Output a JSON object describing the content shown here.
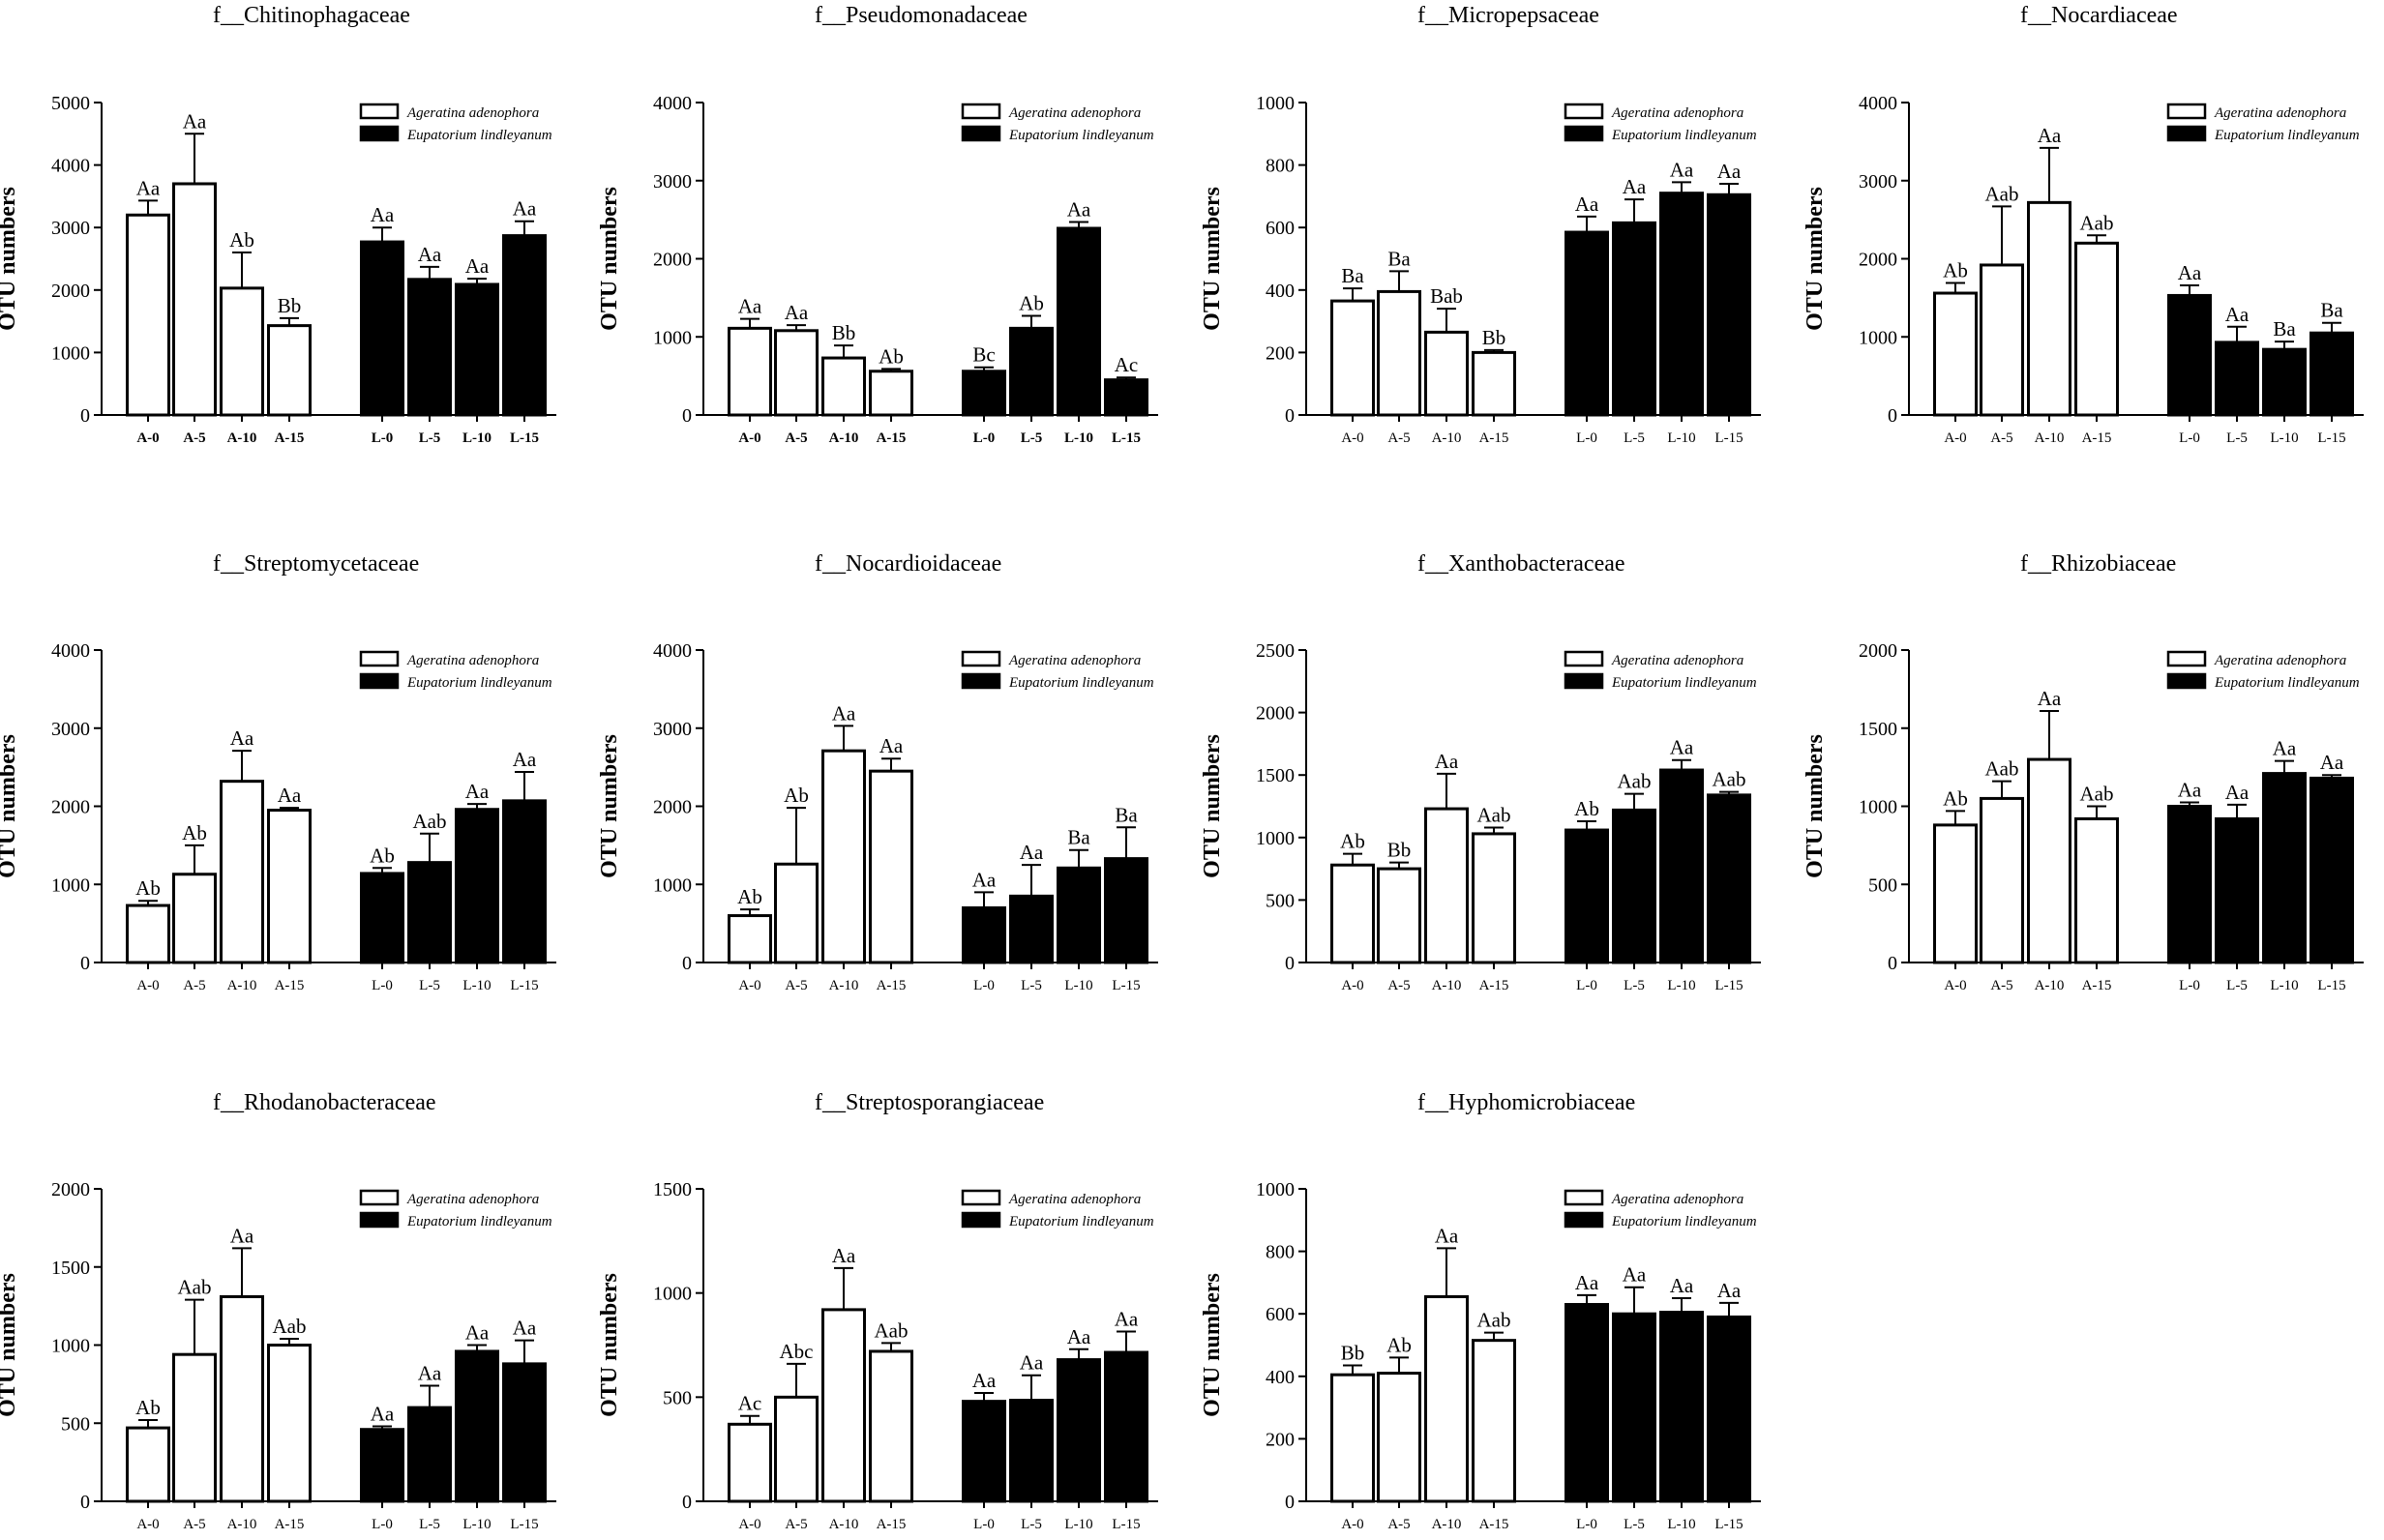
{
  "figure": {
    "ylabel": "OTU numbers",
    "legend": [
      "Ageratina adenophora",
      "Eupatorium lindleyanum"
    ],
    "colors": {
      "series_a": "#ffffff",
      "series_l": "#000000",
      "stroke": "#000000"
    }
  },
  "chart_data": [
    {
      "type": "bar",
      "title": "f__Chitinophagaceae",
      "ylabel": "OTU numbers",
      "ylim": [
        0,
        5000
      ],
      "yticks": [
        0,
        1000,
        2000,
        3000,
        4000,
        5000
      ],
      "bold_xticks": true,
      "legend": [
        "Ageratina adenophora",
        "Eupatorium lindleyanum"
      ],
      "series": [
        {
          "name": "Ageratina adenophora",
          "categories": [
            "A-0",
            "A-5",
            "A-10",
            "A-15"
          ],
          "values": [
            3200,
            3700,
            2030,
            1430
          ],
          "errors": [
            230,
            800,
            570,
            120
          ],
          "labels": [
            "Aa",
            "Aa",
            "Ab",
            "Bb"
          ]
        },
        {
          "name": "Eupatorium lindleyanum",
          "categories": [
            "L-0",
            "L-5",
            "L-10",
            "L-15"
          ],
          "values": [
            2770,
            2170,
            2090,
            2870
          ],
          "errors": [
            230,
            200,
            90,
            230
          ],
          "labels": [
            "Aa",
            "Aa",
            "Aa",
            "Aa"
          ]
        }
      ]
    },
    {
      "type": "bar",
      "title": "f__Pseudomonadaceae",
      "ylabel": "OTU numbers",
      "ylim": [
        0,
        4000
      ],
      "yticks": [
        0,
        1000,
        2000,
        3000,
        4000
      ],
      "bold_xticks": true,
      "legend": [
        "Ageratina adenophora",
        "Eupatorium lindleyanum"
      ],
      "series": [
        {
          "name": "Ageratina adenophora",
          "categories": [
            "A-0",
            "A-5",
            "A-10",
            "A-15"
          ],
          "values": [
            1110,
            1080,
            730,
            560
          ],
          "errors": [
            120,
            70,
            160,
            30
          ],
          "labels": [
            "Aa",
            "Aa",
            "Bb",
            "Ab"
          ]
        },
        {
          "name": "Eupatorium lindleyanum",
          "categories": [
            "L-0",
            "L-5",
            "L-10",
            "L-15"
          ],
          "values": [
            560,
            1110,
            2390,
            450
          ],
          "errors": [
            50,
            160,
            80,
            30
          ],
          "labels": [
            "Bc",
            "Ab",
            "Aa",
            "Ac"
          ]
        }
      ]
    },
    {
      "type": "bar",
      "title": "f__Micropepsaceae",
      "ylabel": "OTU numbers",
      "ylim": [
        0,
        1000
      ],
      "yticks": [
        0,
        200,
        400,
        600,
        800,
        1000
      ],
      "bold_xticks": false,
      "legend": [
        "Ageratina adenophora",
        "Eupatorium lindleyanum"
      ],
      "series": [
        {
          "name": "Ageratina adenophora",
          "categories": [
            "A-0",
            "A-5",
            "A-10",
            "A-15"
          ],
          "values": [
            365,
            395,
            265,
            200
          ],
          "errors": [
            40,
            65,
            75,
            8
          ],
          "labels": [
            "Ba",
            "Ba",
            "Bab",
            "Bb"
          ]
        },
        {
          "name": "Eupatorium lindleyanum",
          "categories": [
            "L-0",
            "L-5",
            "L-10",
            "L-15"
          ],
          "values": [
            585,
            615,
            710,
            705
          ],
          "errors": [
            50,
            75,
            35,
            35
          ],
          "labels": [
            "Aa",
            "Aa",
            "Aa",
            "Aa"
          ]
        }
      ]
    },
    {
      "type": "bar",
      "title": "f__Nocardiaceae",
      "ylabel": "OTU numbers",
      "ylim": [
        0,
        4000
      ],
      "yticks": [
        0,
        1000,
        2000,
        3000,
        4000
      ],
      "bold_xticks": false,
      "legend": [
        "Ageratina adenophora",
        "Eupatorium lindleyanum"
      ],
      "series": [
        {
          "name": "Ageratina adenophora",
          "categories": [
            "A-0",
            "A-5",
            "A-10",
            "A-15"
          ],
          "values": [
            1560,
            1920,
            2720,
            2200
          ],
          "errors": [
            130,
            750,
            700,
            100
          ],
          "labels": [
            "Ab",
            "Aab",
            "Aa",
            "Aab"
          ]
        },
        {
          "name": "Eupatorium lindleyanum",
          "categories": [
            "L-0",
            "L-5",
            "L-10",
            "L-15"
          ],
          "values": [
            1530,
            930,
            840,
            1050
          ],
          "errors": [
            130,
            200,
            100,
            130
          ],
          "labels": [
            "Aa",
            "Aa",
            "Ba",
            "Ba"
          ]
        }
      ]
    },
    {
      "type": "bar",
      "title": "f__Streptomycetaceae",
      "ylabel": "OTU numbers",
      "ylim": [
        0,
        4000
      ],
      "yticks": [
        0,
        1000,
        2000,
        3000,
        4000
      ],
      "bold_xticks": false,
      "legend": [
        "Ageratina adenophora",
        "Eupatorium lindleyanum"
      ],
      "series": [
        {
          "name": "Ageratina adenophora",
          "categories": [
            "A-0",
            "A-5",
            "A-10",
            "A-15"
          ],
          "values": [
            730,
            1130,
            2320,
            1950
          ],
          "errors": [
            60,
            370,
            390,
            30
          ],
          "labels": [
            "Ab",
            "Ab",
            "Aa",
            "Aa"
          ]
        },
        {
          "name": "Eupatorium lindleyanum",
          "categories": [
            "L-0",
            "L-5",
            "L-10",
            "L-15"
          ],
          "values": [
            1140,
            1280,
            1960,
            2070
          ],
          "errors": [
            70,
            370,
            70,
            370
          ],
          "labels": [
            "Ab",
            "Aab",
            "Aa",
            "Aa"
          ]
        }
      ]
    },
    {
      "type": "bar",
      "title": "f__Nocardioidaceae",
      "ylabel": "OTU numbers",
      "ylim": [
        0,
        4000
      ],
      "yticks": [
        0,
        1000,
        2000,
        3000,
        4000
      ],
      "bold_xticks": false,
      "legend": [
        "Ageratina adenophora",
        "Eupatorium lindleyanum"
      ],
      "series": [
        {
          "name": "Ageratina adenophora",
          "categories": [
            "A-0",
            "A-5",
            "A-10",
            "A-15"
          ],
          "values": [
            600,
            1260,
            2710,
            2450
          ],
          "errors": [
            80,
            720,
            320,
            160
          ],
          "labels": [
            "Ab",
            "Ab",
            "Aa",
            "Aa"
          ]
        },
        {
          "name": "Eupatorium lindleyanum",
          "categories": [
            "L-0",
            "L-5",
            "L-10",
            "L-15"
          ],
          "values": [
            700,
            850,
            1210,
            1330
          ],
          "errors": [
            200,
            400,
            230,
            400
          ],
          "labels": [
            "Aa",
            "Aa",
            "Ba",
            "Ba"
          ]
        }
      ]
    },
    {
      "type": "bar",
      "title": "f__Xanthobacteraceae",
      "ylabel": "OTU numbers",
      "ylim": [
        0,
        2500
      ],
      "yticks": [
        0,
        500,
        1000,
        1500,
        2000,
        2500
      ],
      "bold_xticks": false,
      "legend": [
        "Ageratina adenophora",
        "Eupatorium lindleyanum"
      ],
      "series": [
        {
          "name": "Ageratina adenophora",
          "categories": [
            "A-0",
            "A-5",
            "A-10",
            "A-15"
          ],
          "values": [
            780,
            750,
            1230,
            1030
          ],
          "errors": [
            90,
            50,
            280,
            50
          ],
          "labels": [
            "Ab",
            "Bb",
            "Aa",
            "Aab"
          ]
        },
        {
          "name": "Eupatorium lindleyanum",
          "categories": [
            "L-0",
            "L-5",
            "L-10",
            "L-15"
          ],
          "values": [
            1060,
            1220,
            1540,
            1340
          ],
          "errors": [
            70,
            130,
            80,
            25
          ],
          "labels": [
            "Ab",
            "Aab",
            "Aa",
            "Aab"
          ]
        }
      ]
    },
    {
      "type": "bar",
      "title": "f__Rhizobiaceae",
      "ylabel": "OTU numbers",
      "ylim": [
        0,
        2000
      ],
      "yticks": [
        0,
        500,
        1000,
        1500,
        2000
      ],
      "bold_xticks": false,
      "legend": [
        "Ageratina adenophora",
        "Eupatorium lindleyanum"
      ],
      "series": [
        {
          "name": "Ageratina adenophora",
          "categories": [
            "A-0",
            "A-5",
            "A-10",
            "A-15"
          ],
          "values": [
            880,
            1050,
            1300,
            920
          ],
          "errors": [
            90,
            110,
            310,
            80
          ],
          "labels": [
            "Ab",
            "Aab",
            "Aa",
            "Aab"
          ]
        },
        {
          "name": "Eupatorium lindleyanum",
          "categories": [
            "L-0",
            "L-5",
            "L-10",
            "L-15"
          ],
          "values": [
            1000,
            920,
            1210,
            1180
          ],
          "errors": [
            25,
            90,
            80,
            20
          ],
          "labels": [
            "Aa",
            "Aa",
            "Aa",
            "Aa"
          ]
        }
      ]
    },
    {
      "type": "bar",
      "title": "f__Rhodanobacteraceae",
      "ylabel": "OTU numbers",
      "ylim": [
        0,
        2000
      ],
      "yticks": [
        0,
        500,
        1000,
        1500,
        2000
      ],
      "bold_xticks": false,
      "legend": [
        "Ageratina adenophora",
        "Eupatorium lindleyanum"
      ],
      "series": [
        {
          "name": "Ageratina adenophora",
          "categories": [
            "A-0",
            "A-5",
            "A-10",
            "A-15"
          ],
          "values": [
            470,
            940,
            1310,
            1000
          ],
          "errors": [
            50,
            350,
            310,
            40
          ],
          "labels": [
            "Ab",
            "Aab",
            "Aa",
            "Aab"
          ]
        },
        {
          "name": "Eupatorium lindleyanum",
          "categories": [
            "L-0",
            "L-5",
            "L-10",
            "L-15"
          ],
          "values": [
            460,
            600,
            960,
            880
          ],
          "errors": [
            20,
            140,
            40,
            150
          ],
          "labels": [
            "Aa",
            "Aa",
            "Aa",
            "Aa"
          ]
        }
      ]
    },
    {
      "type": "bar",
      "title": "f__Streptosporangiaceae",
      "ylabel": "OTU numbers",
      "ylim": [
        0,
        1500
      ],
      "yticks": [
        0,
        500,
        1000,
        1500
      ],
      "bold_xticks": false,
      "legend": [
        "Ageratina adenophora",
        "Eupatorium lindleyanum"
      ],
      "series": [
        {
          "name": "Ageratina adenophora",
          "categories": [
            "A-0",
            "A-5",
            "A-10",
            "A-15"
          ],
          "values": [
            370,
            500,
            920,
            720
          ],
          "errors": [
            40,
            160,
            200,
            40
          ],
          "labels": [
            "Ac",
            "Abc",
            "Aa",
            "Aab"
          ]
        },
        {
          "name": "Eupatorium lindleyanum",
          "categories": [
            "L-0",
            "L-5",
            "L-10",
            "L-15"
          ],
          "values": [
            480,
            485,
            680,
            715
          ],
          "errors": [
            40,
            120,
            50,
            100
          ],
          "labels": [
            "Aa",
            "Aa",
            "Aa",
            "Aa"
          ]
        }
      ]
    },
    {
      "type": "bar",
      "title": "f__Hyphomicrobiaceae",
      "ylabel": "OTU numbers",
      "ylim": [
        0,
        1000
      ],
      "yticks": [
        0,
        200,
        400,
        600,
        800,
        1000
      ],
      "bold_xticks": false,
      "legend": [
        "Ageratina adenophora",
        "Eupatorium lindleyanum"
      ],
      "series": [
        {
          "name": "Ageratina adenophora",
          "categories": [
            "A-0",
            "A-5",
            "A-10",
            "A-15"
          ],
          "values": [
            405,
            410,
            655,
            515
          ],
          "errors": [
            30,
            50,
            155,
            25
          ],
          "labels": [
            "Bb",
            "Ab",
            "Aa",
            "Aab"
          ]
        },
        {
          "name": "Eupatorium lindleyanum",
          "categories": [
            "L-0",
            "L-5",
            "L-10",
            "L-15"
          ],
          "values": [
            630,
            600,
            605,
            590
          ],
          "errors": [
            30,
            85,
            45,
            45
          ],
          "labels": [
            "Aa",
            "Aa",
            "Aa",
            "Aa"
          ]
        }
      ]
    }
  ]
}
